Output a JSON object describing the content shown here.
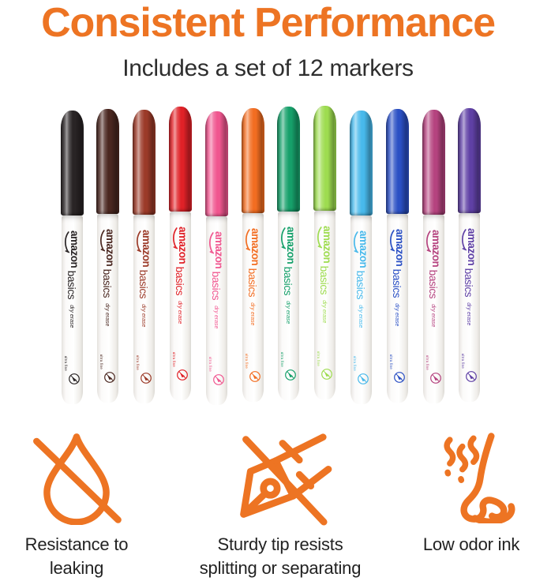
{
  "page": {
    "background": "#ffffff",
    "accent": "#ED7423"
  },
  "header": {
    "title": "Consistent Performance",
    "subtitle": "Includes a set of 12 markers",
    "title_color": "#ED7423",
    "subtitle_color": "#2E2E2E"
  },
  "markers": {
    "count": 12,
    "brand_primary": "amazon",
    "brand_secondary": "basics",
    "product_type": "dry erase",
    "tip_label": "ultra fine",
    "items": [
      {
        "name": "black",
        "cap_color": "#292425"
      },
      {
        "name": "brown",
        "cap_color": "#4A2720"
      },
      {
        "name": "brick-red",
        "cap_color": "#9B3A28"
      },
      {
        "name": "red",
        "cap_color": "#E02127"
      },
      {
        "name": "pink",
        "cap_color": "#F0568F"
      },
      {
        "name": "orange",
        "cap_color": "#F26D21"
      },
      {
        "name": "green",
        "cap_color": "#16A06A"
      },
      {
        "name": "lime-green",
        "cap_color": "#9EDC50"
      },
      {
        "name": "sky-blue",
        "cap_color": "#48B9EB"
      },
      {
        "name": "blue",
        "cap_color": "#2B50C4"
      },
      {
        "name": "berry-pink",
        "cap_color": "#B5437F"
      },
      {
        "name": "purple",
        "cap_color": "#5F40A5"
      }
    ]
  },
  "features": [
    {
      "icon": "no-leak-drop-icon",
      "lines": [
        "Resistance to leaking"
      ]
    },
    {
      "icon": "no-split-nib-icon",
      "lines": [
        "Sturdy tip resists",
        "splitting or separating"
      ]
    },
    {
      "icon": "low-odor-nose-icon",
      "lines": [
        "Low odor ink"
      ]
    }
  ]
}
